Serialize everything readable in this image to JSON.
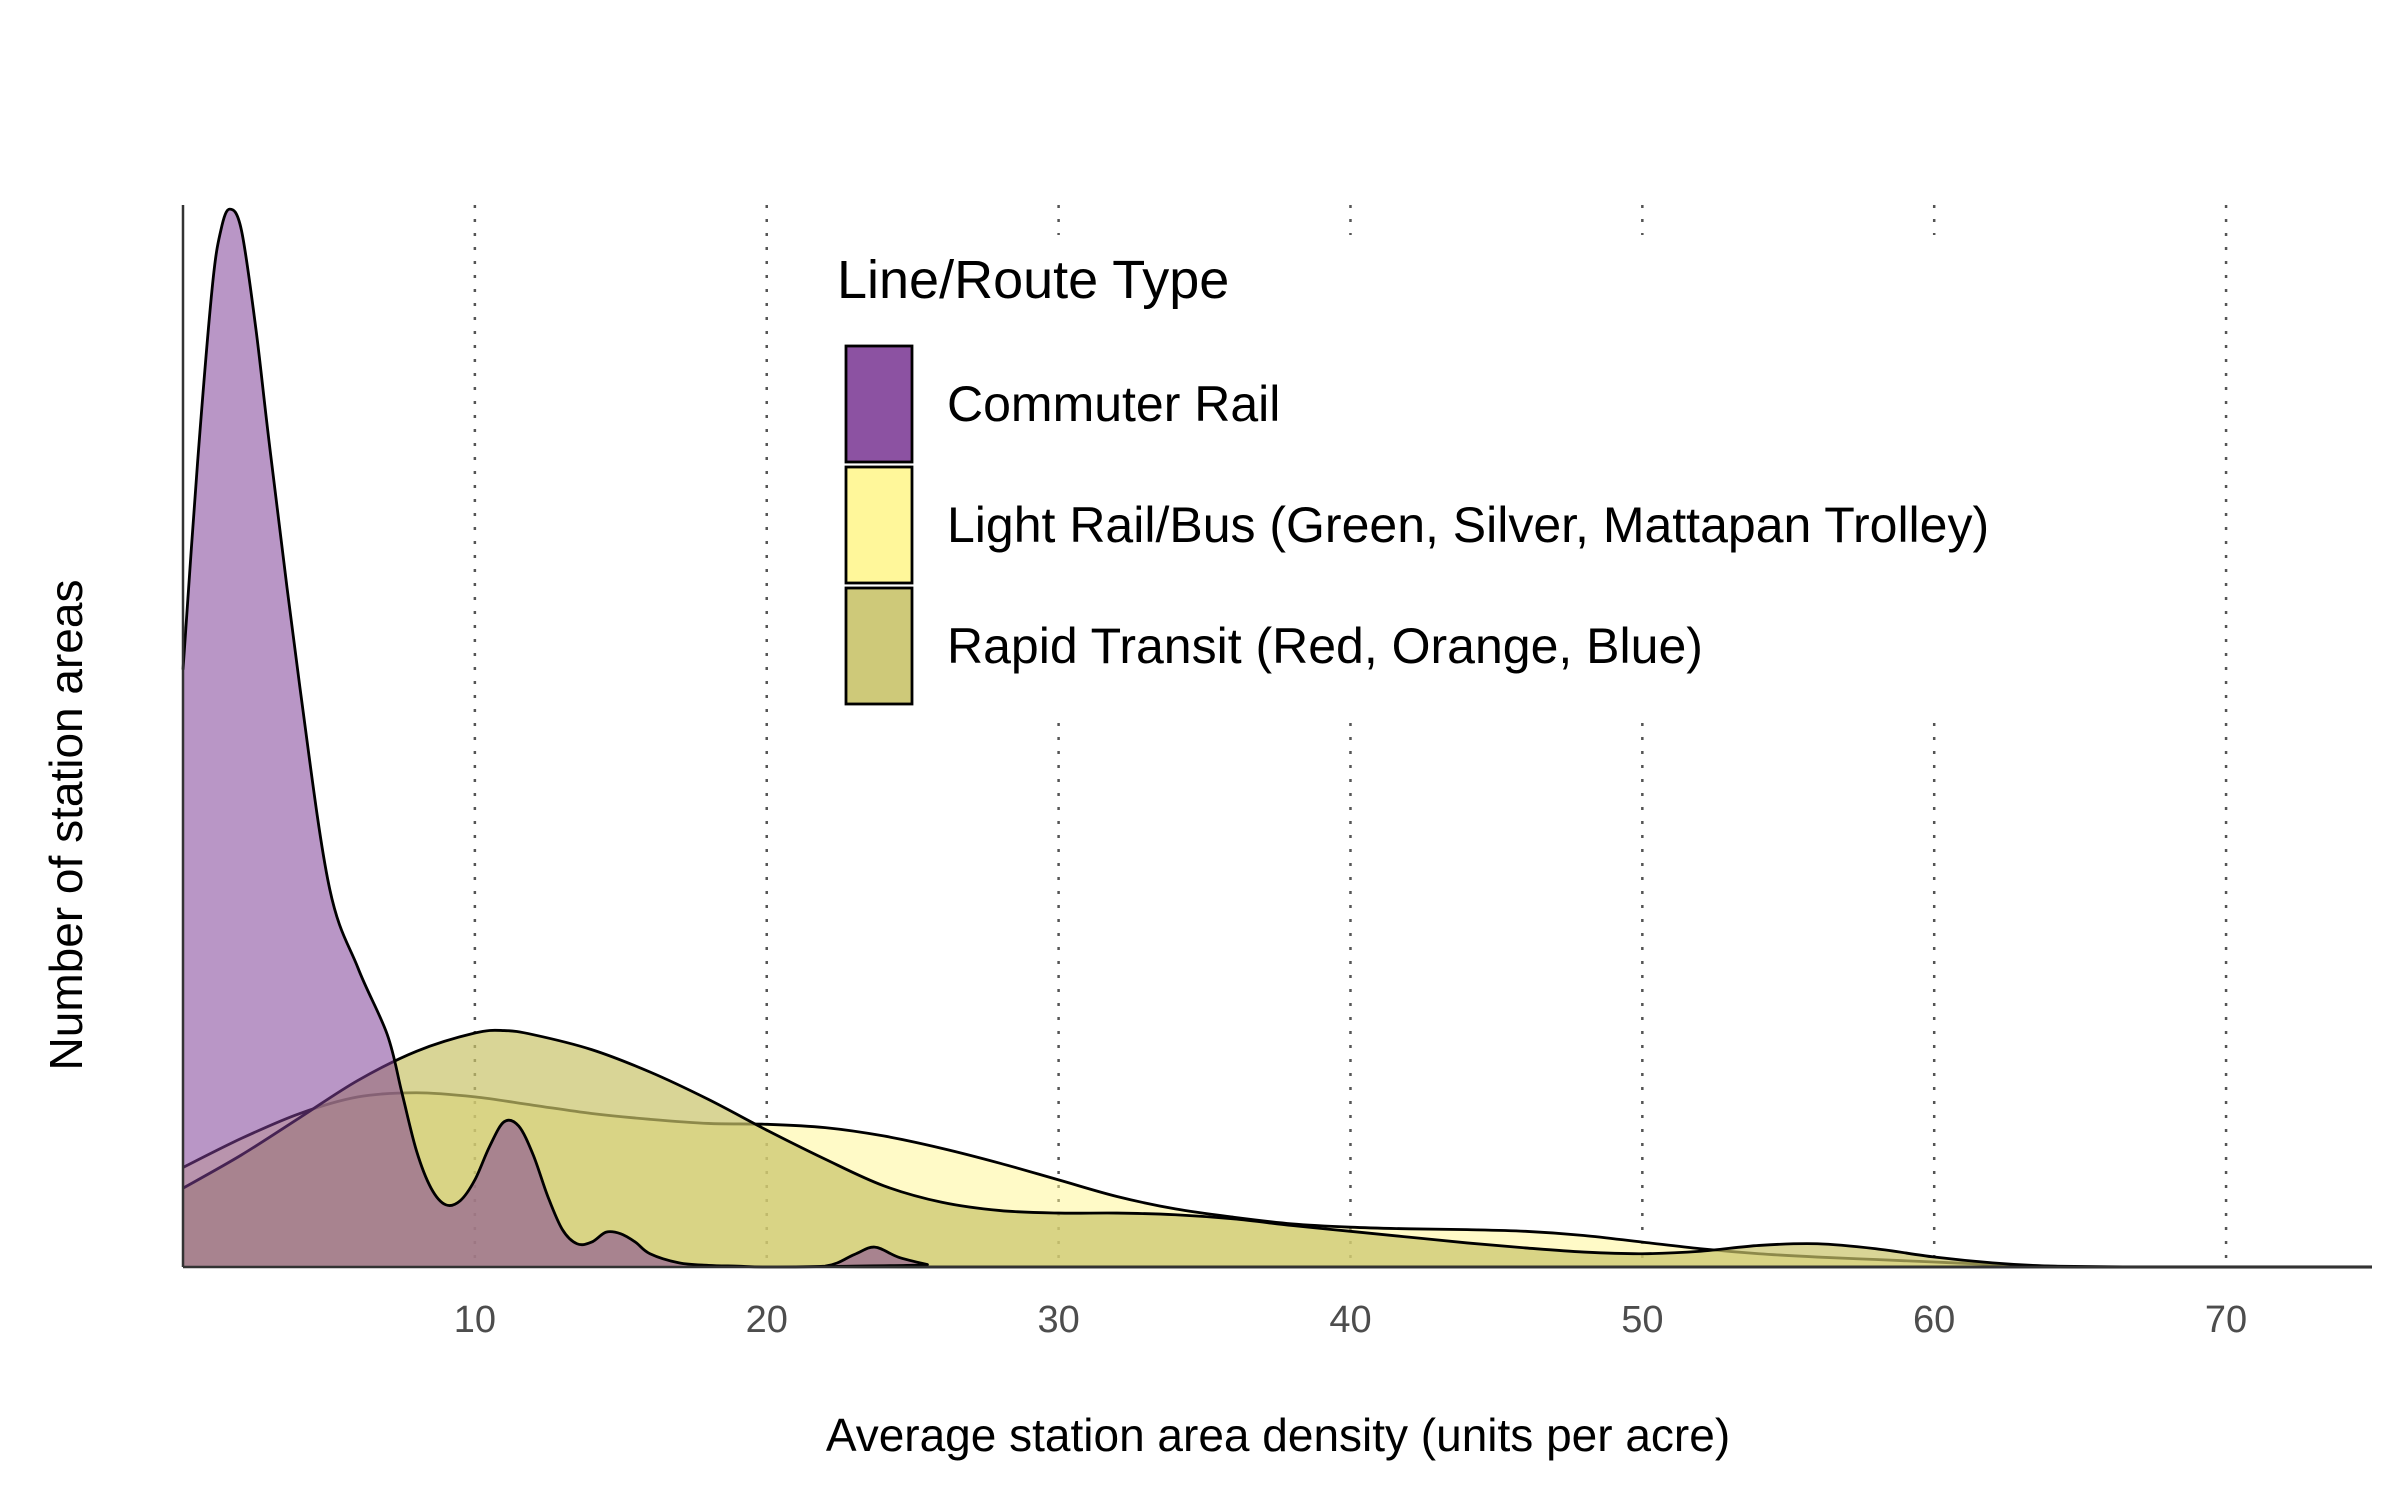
{
  "chart_data": {
    "type": "area",
    "subtype": "density",
    "xlabel": "Average station area density (units per acre)",
    "ylabel": "Number of station areas",
    "xlim": [
      0,
      75
    ],
    "ylim": [
      0,
      0.128
    ],
    "x_ticks": [
      10,
      20,
      30,
      40,
      50,
      60,
      70
    ],
    "y_ticks_shown": false,
    "grid": "vertical dotted lines at major x ticks",
    "legend": {
      "title": "Line/Route Type",
      "placement": "top-center"
    },
    "series": [
      {
        "name": "Light Rail/Bus (Green, Silver, Mattapan Trolley)",
        "color": "#FFF68F",
        "opacity": 0.5,
        "points": [
          [
            0,
            0.012
          ],
          [
            2,
            0.0155
          ],
          [
            4,
            0.0185
          ],
          [
            6,
            0.0205
          ],
          [
            8,
            0.021
          ],
          [
            10,
            0.0205
          ],
          [
            12,
            0.0195
          ],
          [
            14,
            0.0185
          ],
          [
            16,
            0.0178
          ],
          [
            18,
            0.0173
          ],
          [
            20,
            0.0172
          ],
          [
            22,
            0.0168
          ],
          [
            24,
            0.0158
          ],
          [
            26,
            0.0143
          ],
          [
            28,
            0.0125
          ],
          [
            30,
            0.0105
          ],
          [
            32,
            0.0085
          ],
          [
            34,
            0.007
          ],
          [
            36,
            0.006
          ],
          [
            38,
            0.0052
          ],
          [
            40,
            0.0048
          ],
          [
            42,
            0.0046
          ],
          [
            44,
            0.0045
          ],
          [
            46,
            0.0043
          ],
          [
            48,
            0.0038
          ],
          [
            50,
            0.003
          ],
          [
            52,
            0.0022
          ],
          [
            54,
            0.0016
          ],
          [
            56,
            0.0012
          ],
          [
            58,
            0.0009
          ],
          [
            60,
            0.0006
          ],
          [
            62,
            0.0003
          ],
          [
            64,
            0.0001
          ],
          [
            66,
            3e-05
          ],
          [
            68,
            0.0
          ],
          [
            75,
            0.0
          ]
        ]
      },
      {
        "name": "Rapid Transit (Red, Orange, Blue)",
        "color": "#C9C36A",
        "opacity": 0.7,
        "points": [
          [
            0,
            0.0095
          ],
          [
            2,
            0.0135
          ],
          [
            4,
            0.018
          ],
          [
            6,
            0.0225
          ],
          [
            8,
            0.026
          ],
          [
            10,
            0.0282
          ],
          [
            11,
            0.0285
          ],
          [
            12,
            0.028
          ],
          [
            14,
            0.0262
          ],
          [
            16,
            0.0235
          ],
          [
            18,
            0.0202
          ],
          [
            20,
            0.0165
          ],
          [
            22,
            0.013
          ],
          [
            24,
            0.0098
          ],
          [
            26,
            0.0078
          ],
          [
            28,
            0.0068
          ],
          [
            30,
            0.0065
          ],
          [
            32,
            0.0065
          ],
          [
            34,
            0.0063
          ],
          [
            36,
            0.0058
          ],
          [
            38,
            0.005
          ],
          [
            40,
            0.0043
          ],
          [
            42,
            0.0036
          ],
          [
            44,
            0.0029
          ],
          [
            46,
            0.0023
          ],
          [
            48,
            0.0018
          ],
          [
            50,
            0.0016
          ],
          [
            52,
            0.0019
          ],
          [
            54,
            0.0026
          ],
          [
            56,
            0.0028
          ],
          [
            58,
            0.0022
          ],
          [
            60,
            0.0012
          ],
          [
            62,
            0.0005
          ],
          [
            64,
            0.0001
          ],
          [
            66,
            0.0
          ],
          [
            75,
            0.0
          ]
        ]
      },
      {
        "name": "Commuter Rail",
        "color": "#7F3F98",
        "opacity": 0.55,
        "points": [
          [
            0,
            0.072
          ],
          [
            0.5,
            0.097
          ],
          [
            1,
            0.118
          ],
          [
            1.3,
            0.125
          ],
          [
            1.6,
            0.1275
          ],
          [
            2,
            0.125
          ],
          [
            2.5,
            0.113
          ],
          [
            3,
            0.098
          ],
          [
            4,
            0.07
          ],
          [
            5,
            0.046
          ],
          [
            6,
            0.036
          ],
          [
            7,
            0.028
          ],
          [
            7.5,
            0.021
          ],
          [
            8,
            0.014
          ],
          [
            8.5,
            0.0095
          ],
          [
            9,
            0.0075
          ],
          [
            9.5,
            0.008
          ],
          [
            10,
            0.0105
          ],
          [
            10.5,
            0.0145
          ],
          [
            11,
            0.0175
          ],
          [
            11.5,
            0.017
          ],
          [
            12,
            0.0135
          ],
          [
            12.5,
            0.0085
          ],
          [
            13,
            0.0045
          ],
          [
            13.5,
            0.0028
          ],
          [
            14,
            0.003
          ],
          [
            14.5,
            0.0042
          ],
          [
            15,
            0.004
          ],
          [
            15.5,
            0.003
          ],
          [
            16,
            0.0016
          ],
          [
            17,
            0.0005
          ],
          [
            18,
            0.0002
          ],
          [
            19,
            0.0001
          ],
          [
            20,
            0.0
          ],
          [
            22,
            0.0001
          ],
          [
            23,
            0.0015
          ],
          [
            23.7,
            0.0024
          ],
          [
            24.5,
            0.0012
          ],
          [
            25.5,
            0.0003
          ],
          [
            26,
            0.0
          ],
          [
            75,
            0.0
          ]
        ]
      }
    ]
  }
}
